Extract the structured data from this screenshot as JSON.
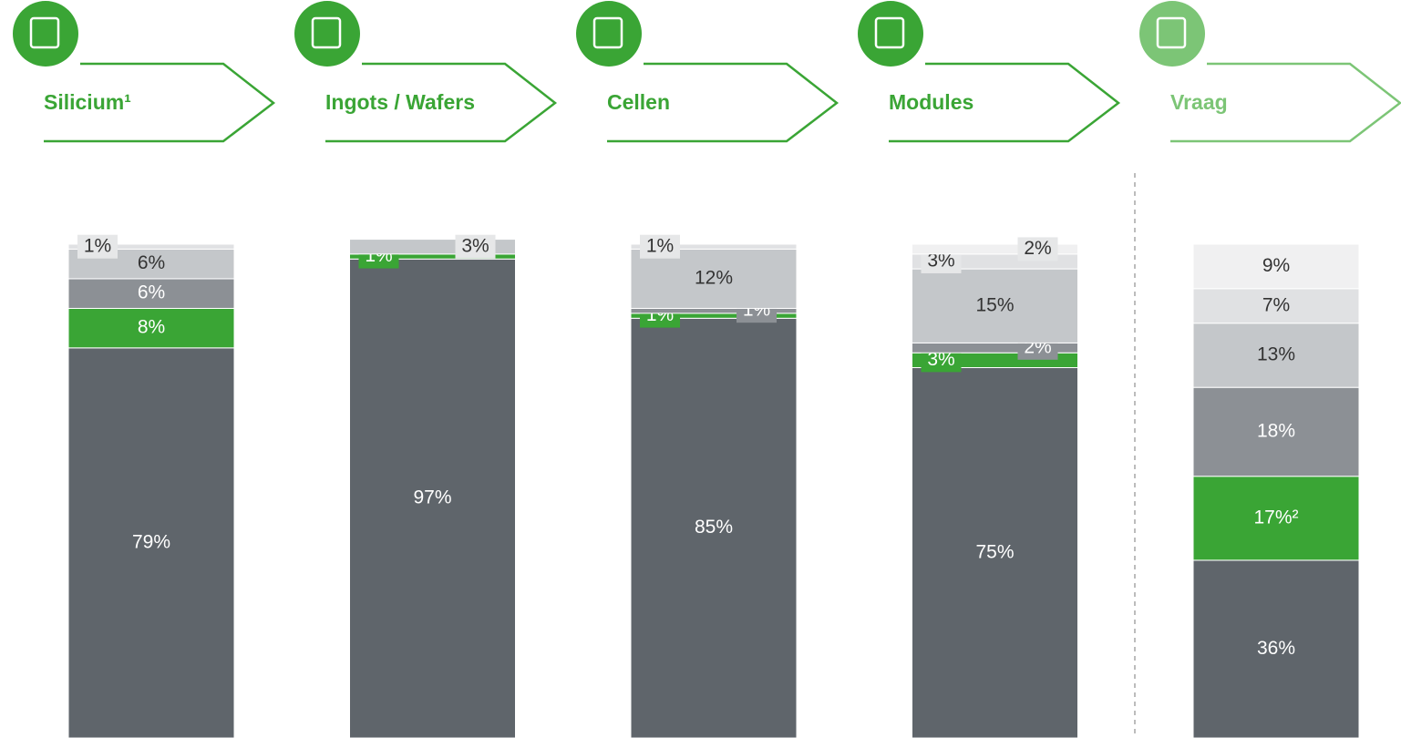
{
  "chart_data": {
    "type": "stacked-bar",
    "categories": [
      "Silicium¹",
      "Ingots / Wafers",
      "Cellen",
      "Modules",
      "Vraag"
    ],
    "ylim": [
      0,
      100
    ],
    "series": [
      {
        "color": "#5f656b",
        "values": [
          79,
          97,
          85,
          75,
          36
        ],
        "value_labels": [
          "79%",
          "97%",
          "85%",
          "75%",
          "36%"
        ]
      },
      {
        "color": "#3aa535",
        "values": [
          8,
          1,
          1,
          3,
          17
        ],
        "value_labels": [
          "8%",
          "1%",
          "1%",
          "3%",
          "17%²"
        ]
      },
      {
        "color": "#8c9095",
        "values": [
          6,
          null,
          1,
          2,
          18
        ],
        "value_labels": [
          "6%",
          null,
          "1%",
          "2%",
          "18%"
        ]
      },
      {
        "color": "#c4c7ca",
        "values": [
          6,
          3,
          12,
          15,
          13
        ],
        "value_labels": [
          "6%",
          "3%",
          "12%",
          "15%",
          "13%"
        ]
      },
      {
        "color": "#e0e1e3",
        "values": [
          1,
          null,
          1,
          3,
          7
        ],
        "value_labels": [
          "1%",
          null,
          "1%",
          "3%",
          "7%"
        ]
      },
      {
        "color": "#f0f0f1",
        "values": [
          null,
          null,
          null,
          2,
          9
        ],
        "value_labels": [
          null,
          null,
          null,
          "2%",
          "9%"
        ]
      }
    ]
  }
}
